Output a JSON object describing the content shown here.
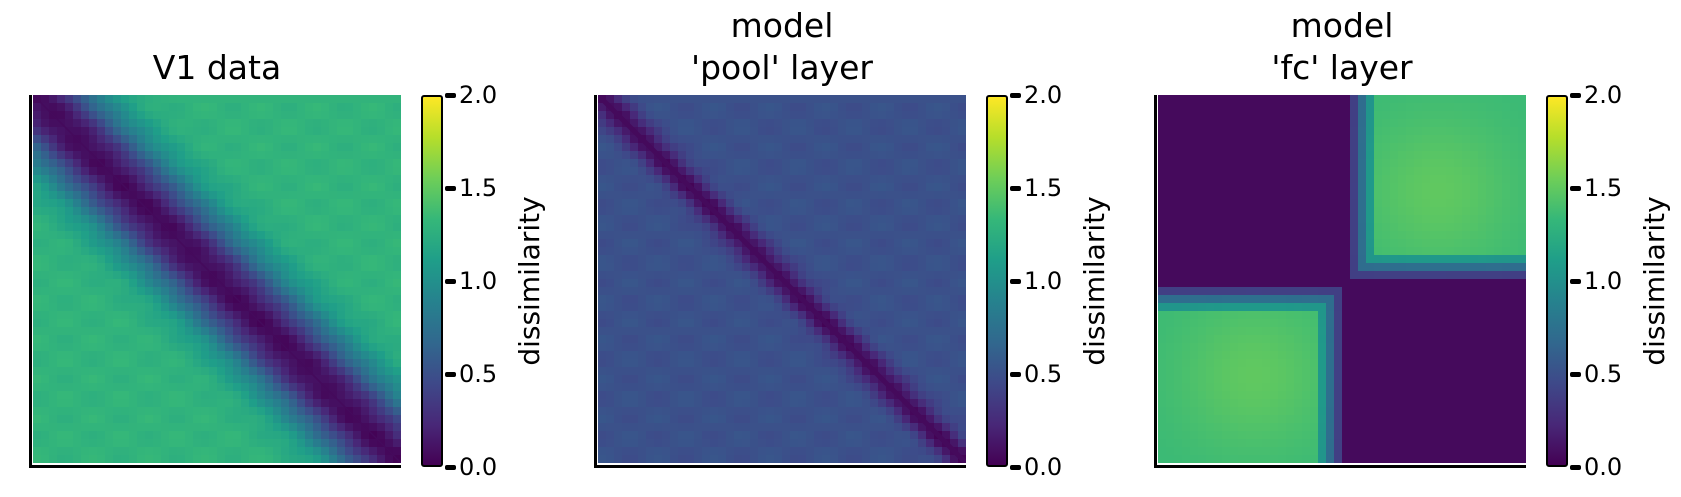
{
  "chart_data": [
    {
      "type": "heatmap",
      "title_lines": [
        "V1 data"
      ],
      "pattern": "diagonal-band",
      "matrix_size": 16,
      "value_range": [
        0,
        2
      ],
      "off_diagonal_value": 1.3,
      "diagonal_value": 0.05,
      "band_width": 0.12,
      "colorbar": {
        "label": "dissimilarity",
        "ticks": [
          "0.0",
          "0.5",
          "1.0",
          "1.5",
          "2.0"
        ],
        "tick_values": [
          0,
          0.5,
          1,
          1.5,
          2
        ]
      }
    },
    {
      "type": "heatmap",
      "title_lines": [
        "model",
        "'pool' layer"
      ],
      "pattern": "diagonal-band",
      "matrix_size": 16,
      "value_range": [
        0,
        2
      ],
      "off_diagonal_value": 0.5,
      "diagonal_value": 0.05,
      "band_width": 0.04,
      "colorbar": {
        "label": "dissimilarity",
        "ticks": [
          "0.0",
          "0.5",
          "1.0",
          "1.5",
          "2.0"
        ],
        "tick_values": [
          0,
          0.5,
          1,
          1.5,
          2
        ]
      }
    },
    {
      "type": "heatmap",
      "title_lines": [
        "model",
        "'fc' layer"
      ],
      "pattern": "block",
      "matrix_size": 16,
      "value_range": [
        0,
        2
      ],
      "block_within_value": 0.05,
      "block_between_value": 1.35,
      "colorbar": {
        "label": "dissimilarity",
        "ticks": [
          "0.0",
          "0.5",
          "1.0",
          "1.5",
          "2.0"
        ],
        "tick_values": [
          0,
          0.5,
          1,
          1.5,
          2
        ]
      }
    }
  ],
  "colormap": {
    "name": "viridis",
    "stops": [
      "#440154",
      "#482878",
      "#3e4989",
      "#31688e",
      "#26828e",
      "#1f9e89",
      "#35b779",
      "#6ece58",
      "#b5de2b",
      "#fde725"
    ]
  }
}
